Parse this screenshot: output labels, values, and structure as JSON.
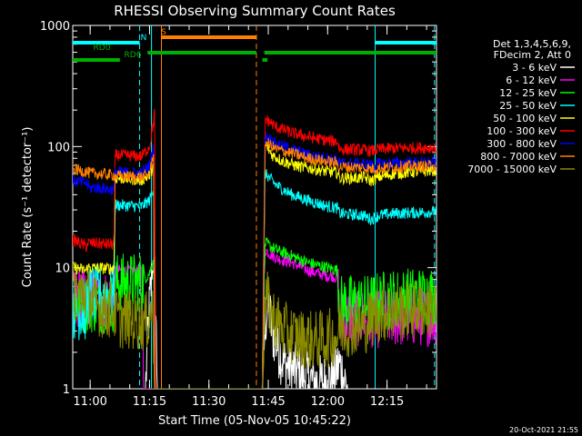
{
  "chart_data": {
    "type": "line",
    "title": "RHESSI Observing Summary Count Rates",
    "xlabel": "Start Time (05-Nov-05 10:45:22)",
    "ylabel": "Count Rate (s⁻¹ detector⁻¹)",
    "y_scale": "log",
    "ylim": [
      1,
      1000
    ],
    "xlim_minutes": [
      10.6,
      102.5
    ],
    "x_ticks": [
      {
        "minute": 15,
        "label": "11:00"
      },
      {
        "minute": 30,
        "label": "11:15"
      },
      {
        "minute": 45,
        "label": "11:30"
      },
      {
        "minute": 60,
        "label": "11:45"
      },
      {
        "minute": 75,
        "label": "12:00"
      },
      {
        "minute": 90,
        "label": "12:15"
      }
    ],
    "y_ticks": [
      {
        "value": 1,
        "label": "1"
      },
      {
        "value": 10,
        "label": "10"
      },
      {
        "value": 100,
        "label": "100"
      },
      {
        "value": 1000,
        "label": "1000"
      }
    ],
    "legend": {
      "placement": "right",
      "header": [
        "Det 1,3,4,5,6,9,",
        "FDecim 2, Att 0"
      ]
    },
    "series": [
      {
        "name": "3 - 6 keV",
        "color": "#ffffff",
        "points": [
          [
            10.6,
            1
          ],
          [
            29,
            1
          ],
          [
            29.5,
            2.5
          ],
          [
            30,
            5
          ],
          [
            30.7,
            9
          ],
          [
            31.3,
            12
          ],
          [
            32,
            1
          ],
          [
            58.5,
            1
          ],
          [
            59.2,
            3.5
          ],
          [
            60,
            5
          ],
          [
            61,
            3
          ],
          [
            64,
            1.6
          ],
          [
            70,
            1.2
          ],
          [
            73,
            1.1
          ],
          [
            76,
            1.2
          ],
          [
            78,
            1.6
          ],
          [
            80,
            1
          ],
          [
            102.5,
            1
          ]
        ]
      },
      {
        "name": "6 - 12 keV",
        "color": "#ff00ff",
        "points": [
          [
            10.6,
            5.5
          ],
          [
            21,
            5.4
          ],
          [
            21.3,
            9.5
          ],
          [
            28,
            9.4
          ],
          [
            28.5,
            1
          ],
          [
            58.5,
            1
          ],
          [
            59.2,
            14
          ],
          [
            62,
            12
          ],
          [
            66,
            11
          ],
          [
            70,
            9.5
          ],
          [
            75,
            8.5
          ],
          [
            76,
            8.6
          ],
          [
            77.5,
            8.2
          ],
          [
            78,
            4
          ],
          [
            88,
            3.8
          ],
          [
            102.5,
            4
          ]
        ]
      },
      {
        "name": "12 - 25 keV",
        "color": "#00ff00",
        "points": [
          [
            10.6,
            5
          ],
          [
            21,
            5.1
          ],
          [
            21.3,
            7.5
          ],
          [
            28,
            7.6
          ],
          [
            30,
            9
          ],
          [
            31,
            12
          ],
          [
            31.3,
            1
          ],
          [
            58.5,
            1
          ],
          [
            59.2,
            16
          ],
          [
            62,
            14
          ],
          [
            66,
            12.5
          ],
          [
            70,
            11
          ],
          [
            75,
            10
          ],
          [
            77.5,
            9.5
          ],
          [
            78,
            5
          ],
          [
            85,
            5
          ],
          [
            90,
            5.5
          ],
          [
            102.5,
            6
          ]
        ]
      },
      {
        "name": "25 - 50 keV",
        "color": "#00ffff",
        "points": [
          [
            10.6,
            4.5
          ],
          [
            14,
            4.3
          ],
          [
            14.4,
            6
          ],
          [
            21,
            6
          ],
          [
            21.3,
            33
          ],
          [
            28,
            32
          ],
          [
            30,
            36
          ],
          [
            31,
            45
          ],
          [
            31.3,
            1
          ],
          [
            58.5,
            1
          ],
          [
            59.2,
            60
          ],
          [
            62,
            48
          ],
          [
            66,
            40
          ],
          [
            70,
            36
          ],
          [
            75,
            32
          ],
          [
            77.5,
            31
          ],
          [
            78,
            28
          ],
          [
            84,
            27
          ],
          [
            86,
            25
          ],
          [
            88,
            27
          ],
          [
            92,
            28
          ],
          [
            102.5,
            29
          ]
        ]
      },
      {
        "name": "50 - 100 keV",
        "color": "#ffff00",
        "points": [
          [
            10.6,
            10
          ],
          [
            14,
            9.5
          ],
          [
            14.4,
            10
          ],
          [
            21,
            9.8
          ],
          [
            21.3,
            55
          ],
          [
            28,
            53
          ],
          [
            30,
            58
          ],
          [
            31,
            70
          ],
          [
            31.3,
            1
          ],
          [
            58.5,
            1
          ],
          [
            59.2,
            105
          ],
          [
            61,
            85
          ],
          [
            64,
            75
          ],
          [
            68,
            68
          ],
          [
            72,
            65
          ],
          [
            75,
            62
          ],
          [
            77.5,
            61
          ],
          [
            78,
            55
          ],
          [
            83,
            55
          ],
          [
            84,
            56
          ],
          [
            86,
            52
          ],
          [
            88,
            56
          ],
          [
            92,
            60
          ],
          [
            102.5,
            64
          ]
        ]
      },
      {
        "name": "100 - 300 keV",
        "color": "#ff0000",
        "points": [
          [
            10.6,
            17
          ],
          [
            14,
            15
          ],
          [
            14.4,
            16
          ],
          [
            21,
            15.5
          ],
          [
            21.3,
            85
          ],
          [
            28,
            83
          ],
          [
            30,
            100
          ],
          [
            31,
            160
          ],
          [
            31.3,
            210
          ],
          [
            31.5,
            1
          ],
          [
            58.5,
            1
          ],
          [
            59.2,
            170
          ],
          [
            62,
            145
          ],
          [
            66,
            130
          ],
          [
            70,
            120
          ],
          [
            75,
            112
          ],
          [
            77.5,
            110
          ],
          [
            78,
            95
          ],
          [
            84,
            94
          ],
          [
            86,
            92
          ],
          [
            88,
            95
          ],
          [
            92,
            97
          ],
          [
            102.5,
            98
          ]
        ]
      },
      {
        "name": "300 - 800 keV",
        "color": "#0000ff",
        "points": [
          [
            10.6,
            52
          ],
          [
            14,
            50
          ],
          [
            15,
            45
          ],
          [
            16,
            46
          ],
          [
            21,
            44
          ],
          [
            21.3,
            62
          ],
          [
            28,
            60
          ],
          [
            30,
            70
          ],
          [
            31,
            100
          ],
          [
            31.3,
            1
          ],
          [
            58.5,
            1
          ],
          [
            59.2,
            125
          ],
          [
            62,
            105
          ],
          [
            66,
            95
          ],
          [
            70,
            85
          ],
          [
            75,
            80
          ],
          [
            77.5,
            78
          ],
          [
            78,
            73
          ],
          [
            84,
            72
          ],
          [
            86,
            70
          ],
          [
            88,
            72
          ],
          [
            92,
            73
          ],
          [
            102.5,
            74
          ]
        ]
      },
      {
        "name": "800 - 7000 keV",
        "color": "#ff8000",
        "points": [
          [
            10.6,
            65
          ],
          [
            14,
            62
          ],
          [
            15,
            60
          ],
          [
            16,
            60
          ],
          [
            21,
            58
          ],
          [
            21.3,
            57
          ],
          [
            28,
            56
          ],
          [
            30,
            58
          ],
          [
            31,
            90
          ],
          [
            31.3,
            1
          ],
          [
            58.5,
            1
          ],
          [
            59.2,
            110
          ],
          [
            62,
            95
          ],
          [
            66,
            88
          ],
          [
            70,
            80
          ],
          [
            75,
            75
          ],
          [
            77.5,
            73
          ],
          [
            78,
            68
          ],
          [
            84,
            67
          ],
          [
            86,
            65
          ],
          [
            88,
            66
          ],
          [
            92,
            68
          ],
          [
            102.5,
            69
          ]
        ]
      },
      {
        "name": "7000 - 15000 keV",
        "color": "#8b8b00",
        "points": [
          [
            10.6,
            6.5
          ],
          [
            14,
            6
          ],
          [
            16,
            5
          ],
          [
            19,
            4.5
          ],
          [
            21,
            4.6
          ],
          [
            22,
            3.8
          ],
          [
            28,
            3.6
          ],
          [
            29,
            3.5
          ],
          [
            30,
            3.9
          ],
          [
            30.7,
            5
          ],
          [
            31.3,
            1
          ],
          [
            58.5,
            1
          ],
          [
            59.2,
            6
          ],
          [
            61,
            4
          ],
          [
            64,
            3
          ],
          [
            68,
            2.6
          ],
          [
            72,
            2.5
          ],
          [
            75,
            2.6
          ],
          [
            77.5,
            2.7
          ],
          [
            78,
            3.2
          ],
          [
            84,
            3.3
          ],
          [
            86,
            3.8
          ],
          [
            88,
            4.2
          ],
          [
            92,
            4.4
          ],
          [
            102.5,
            4.6
          ]
        ]
      }
    ],
    "status_bars": [
      {
        "label": "N",
        "color": "#00ffff",
        "segments": [
          [
            10.6,
            27.5
          ],
          [
            87,
            102.5
          ]
        ]
      },
      {
        "label": "S",
        "color": "#ff8000",
        "segments": [
          [
            33,
            57
          ]
        ]
      },
      {
        "label": "RD0",
        "color": "#00b000",
        "segments": [
          [
            29.5,
            57
          ],
          [
            59,
            102.5
          ]
        ]
      },
      {
        "label": "RD6",
        "color": "#00b000",
        "segments": [
          [
            10.6,
            22.5
          ],
          [
            58.5,
            59.8
          ]
        ]
      }
    ],
    "vlines": [
      {
        "minute": 27.5,
        "color": "#00ffff",
        "style": "dashed"
      },
      {
        "minute": 30.5,
        "color": "#00ffff",
        "style": "solid"
      },
      {
        "minute": 33,
        "color": "#ff8000",
        "style": "solid"
      },
      {
        "minute": 57,
        "color": "#ff8000",
        "style": "dashed"
      },
      {
        "minute": 87,
        "color": "#00ffff",
        "style": "solid"
      },
      {
        "minute": 102,
        "color": "#00ffff",
        "style": "dashed"
      }
    ],
    "timestamp": "20-Oct-2021 21:55"
  }
}
